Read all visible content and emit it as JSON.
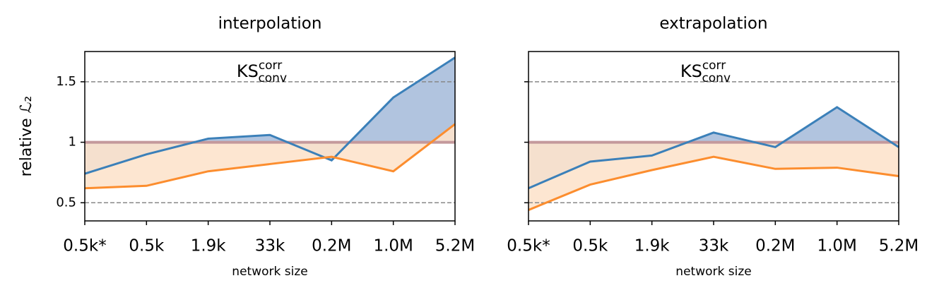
{
  "chart_data": [
    {
      "type": "line",
      "title": "interpolation",
      "xlabel": "network size",
      "ylabel": "relative ℒ₂",
      "annotation": {
        "text": "KS",
        "sup": "corr",
        "sub": "conv"
      },
      "categories": [
        "0.5k*",
        "0.5k",
        "1.9k",
        "33k",
        "0.2M",
        "1.0M",
        "5.2M"
      ],
      "series": [
        {
          "color": "#3b80b9",
          "fill": "#a9bedb",
          "values": [
            0.74,
            0.9,
            1.03,
            1.06,
            0.85,
            1.37,
            1.7
          ]
        },
        {
          "color": "#fc8d2e",
          "fill": "#fde3cc",
          "values": [
            0.62,
            0.64,
            0.76,
            0.82,
            0.88,
            0.76,
            1.15
          ]
        }
      ],
      "baseline": 1.0,
      "baseline_color": "#c4999c",
      "ref_lines": [
        0.5,
        1.5
      ],
      "ylim": [
        0.35,
        1.75
      ],
      "yticks": [
        0.5,
        1.0,
        1.5
      ],
      "ytick_labels": true
    },
    {
      "type": "line",
      "title": "extrapolation",
      "xlabel": "network size",
      "annotation": {
        "text": "KS",
        "sup": "corr",
        "sub": "conv"
      },
      "categories": [
        "0.5k*",
        "0.5k",
        "1.9k",
        "33k",
        "0.2M",
        "1.0M",
        "5.2M"
      ],
      "series": [
        {
          "color": "#3b80b9",
          "fill": "#a9bedb",
          "values": [
            0.62,
            0.84,
            0.89,
            1.08,
            0.96,
            1.29,
            0.96
          ]
        },
        {
          "color": "#fc8d2e",
          "fill": "#fde3cc",
          "values": [
            0.44,
            0.65,
            0.77,
            0.88,
            0.78,
            0.79,
            0.72
          ]
        }
      ],
      "baseline": 1.0,
      "baseline_color": "#c4999c",
      "ref_lines": [
        0.5,
        1.5
      ],
      "ylim": [
        0.35,
        1.75
      ],
      "yticks": [
        0.5,
        1.0,
        1.5
      ],
      "ytick_labels": false
    }
  ]
}
